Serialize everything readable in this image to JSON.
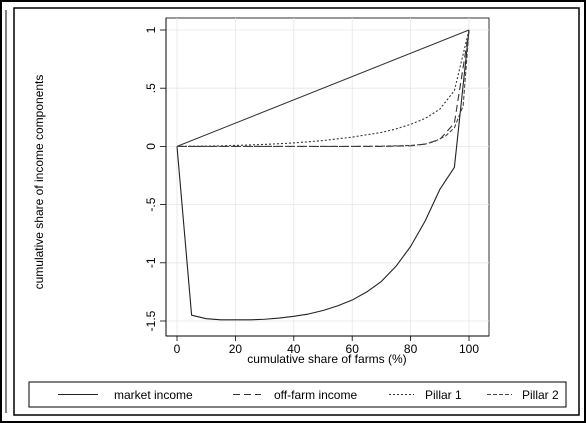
{
  "chart_data": {
    "type": "line",
    "title": "",
    "xlabel": "cumulative share of farms (%)",
    "ylabel": "cumulative share of income components",
    "xlim": [
      0,
      100
    ],
    "ylim": [
      -1.5,
      1
    ],
    "xticks": [
      0,
      20,
      40,
      60,
      80,
      100
    ],
    "xtick_labels": [
      "0",
      "20",
      "40",
      "60",
      "80",
      "100"
    ],
    "yticks": [
      -1.5,
      -1,
      -0.5,
      0,
      0.5,
      1
    ],
    "ytick_labels": [
      "-1.5",
      "-1",
      "-.5",
      "0",
      ".5",
      "1"
    ],
    "grid": true,
    "legend_position": "bottom",
    "reference_line": {
      "x": [
        0,
        100
      ],
      "y": [
        0,
        1
      ]
    },
    "series": [
      {
        "name": "market income",
        "style": "solid",
        "x": [
          0,
          5,
          10,
          15,
          20,
          25,
          30,
          35,
          40,
          45,
          50,
          55,
          60,
          65,
          70,
          75,
          80,
          85,
          90,
          95,
          100
        ],
        "y": [
          0,
          -1.45,
          -1.48,
          -1.49,
          -1.49,
          -1.49,
          -1.485,
          -1.475,
          -1.46,
          -1.44,
          -1.41,
          -1.37,
          -1.32,
          -1.25,
          -1.16,
          -1.03,
          -0.86,
          -0.64,
          -0.37,
          -0.18,
          1.0
        ]
      },
      {
        "name": "off-farm income",
        "style": "longdash",
        "x": [
          0,
          10,
          20,
          30,
          40,
          50,
          60,
          70,
          80,
          85,
          90,
          95,
          100
        ],
        "y": [
          0,
          0,
          0,
          0,
          0,
          0,
          0,
          0,
          0.005,
          0.02,
          0.06,
          0.2,
          1.0
        ]
      },
      {
        "name": "Pillar 1",
        "style": "dotted",
        "x": [
          0,
          10,
          20,
          30,
          40,
          50,
          60,
          70,
          75,
          80,
          85,
          90,
          95,
          100
        ],
        "y": [
          0,
          0.002,
          0.008,
          0.017,
          0.03,
          0.05,
          0.08,
          0.12,
          0.15,
          0.19,
          0.24,
          0.32,
          0.48,
          1.0
        ]
      },
      {
        "name": "Pillar 2",
        "style": "shortdash",
        "x": [
          0,
          10,
          20,
          30,
          40,
          50,
          60,
          70,
          80,
          85,
          88,
          92,
          95,
          98,
          100
        ],
        "y": [
          0,
          0,
          0,
          0,
          0,
          0,
          0,
          0.002,
          0.008,
          0.02,
          0.04,
          0.09,
          0.16,
          0.35,
          1.0
        ]
      }
    ]
  }
}
